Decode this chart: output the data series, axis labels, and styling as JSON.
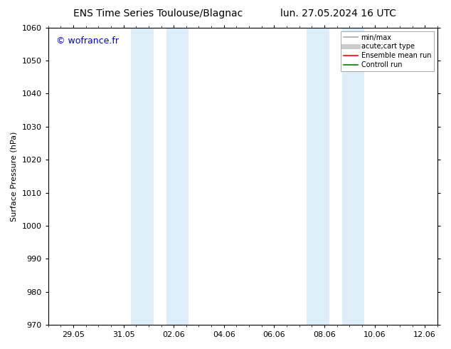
{
  "title_left": "ENS Time Series Toulouse/Blagnac",
  "title_right": "lun. 27.05.2024 16 UTC",
  "ylabel": "Surface Pressure (hPa)",
  "ylim": [
    970,
    1060
  ],
  "yticks": [
    970,
    980,
    990,
    1000,
    1010,
    1020,
    1030,
    1040,
    1050,
    1060
  ],
  "xtick_labels": [
    "29.05",
    "31.05",
    "02.06",
    "04.06",
    "06.06",
    "08.06",
    "10.06",
    "12.06"
  ],
  "shaded_color": "#ddeef8",
  "watermark": "© wofrance.fr",
  "watermark_color": "#0000cc",
  "legend_items": [
    {
      "label": "min/max",
      "color": "#aaaaaa",
      "lw": 1.2
    },
    {
      "label": "acute;cart type",
      "color": "#cccccc",
      "lw": 5
    },
    {
      "label": "Ensemble mean run",
      "color": "#ff0000",
      "lw": 1.2
    },
    {
      "label": "Controll run",
      "color": "#008000",
      "lw": 1.2
    }
  ],
  "bg_color": "#ffffff",
  "title_fontsize": 10,
  "axis_label_fontsize": 8,
  "tick_fontsize": 8
}
